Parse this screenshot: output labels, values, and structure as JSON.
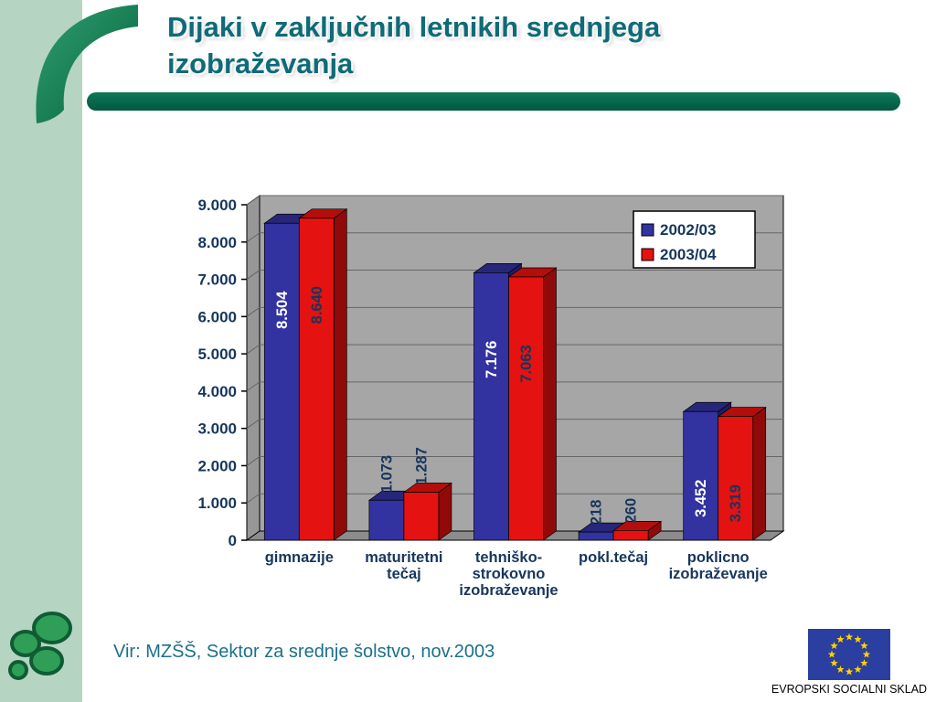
{
  "slide": {
    "title": "Dijaki v zaključnih letnikih srednjega izobraževanja",
    "title_lines": [
      "Dijaki v zaključnih letnikih srednjega",
      "izobraževanja"
    ],
    "source_text": "Vir: MZŠŠ, Sektor za srednje šolstvo, nov.2003",
    "eu_caption": "EVROPSKI SOCIALNI SKLAD"
  },
  "chart_data": {
    "type": "bar",
    "title": "",
    "categories": [
      "gimnazije",
      "maturitetni tečaj",
      "tehniško-strokovno izobraževanje",
      "pokl.tečaj",
      "poklicno izobraževanje"
    ],
    "category_lines": [
      [
        "gimnazije"
      ],
      [
        "maturitetni",
        "tečaj"
      ],
      [
        "tehniško-",
        "strokovno",
        "izobraževanje"
      ],
      [
        "pokl.tečaj"
      ],
      [
        "poklicno",
        "izobraževanje"
      ]
    ],
    "series": [
      {
        "name": "2002/03",
        "color": "#3232A0",
        "color_dark": "#1E1E66",
        "color_top": "#26267A",
        "values": [
          8504,
          1073,
          7176,
          218,
          3452
        ],
        "labels": [
          "8.504",
          "1.073",
          "7.176",
          "218",
          "3.452"
        ]
      },
      {
        "name": "2003/04",
        "color": "#E41210",
        "color_dark": "#8F0A08",
        "color_top": "#B40E0C",
        "values": [
          8640,
          1287,
          7063,
          260,
          3319
        ],
        "labels": [
          "8.640",
          "1.287",
          "7.063",
          "260",
          "3.319"
        ]
      }
    ],
    "ylim": [
      0,
      9000
    ],
    "ytick_step": 1000,
    "ytick_labels": [
      "0",
      "1.000",
      "2.000",
      "3.000",
      "4.000",
      "5.000",
      "6.000",
      "7.000",
      "8.000",
      "9.000"
    ],
    "xlabel": "",
    "ylabel": "",
    "grid": true,
    "legend_position": "top-right",
    "label_color_inside_series1": "#FFFFFF",
    "label_color_default": "#17365D",
    "wall_color": "#A6A6A6"
  }
}
